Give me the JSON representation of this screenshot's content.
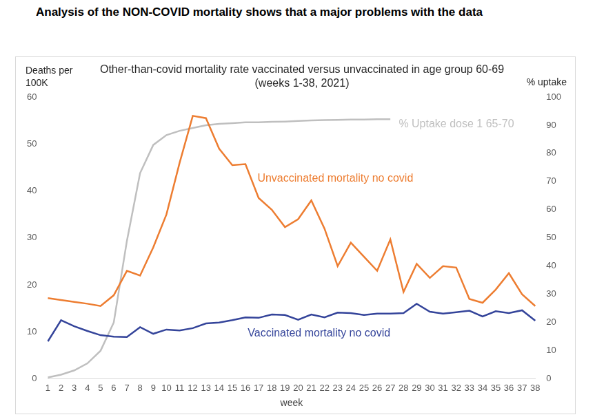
{
  "heading": "Analysis of the NON-COVID mortality shows that a major problems with the data",
  "chart_data": {
    "type": "line",
    "title": "Other-than-covid mortality rate vaccinated versus unvaccinated in age group 60-69  (weeks 1-38, 2021)",
    "x_label": "week",
    "y_label": "Deaths per 100K",
    "y2_label": "% uptake",
    "categories": [
      1,
      2,
      3,
      4,
      5,
      6,
      7,
      8,
      9,
      10,
      11,
      12,
      13,
      14,
      15,
      16,
      17,
      18,
      19,
      20,
      21,
      22,
      23,
      24,
      25,
      26,
      27,
      28,
      29,
      30,
      31,
      32,
      33,
      34,
      35,
      36,
      37,
      38
    ],
    "series": [
      {
        "name": "Unvaccinated mortality no covid",
        "color": "#ed7d31",
        "values": [
          17.2,
          16.8,
          16.4,
          16.0,
          15.5,
          17.8,
          23.0,
          22.0,
          28.0,
          35.0,
          46.0,
          56.0,
          55.5,
          49.0,
          45.5,
          45.7,
          38.5,
          36.0,
          32.3,
          34.0,
          38.0,
          32.0,
          24.0,
          29.0,
          26.0,
          23.0,
          29.7,
          18.5,
          24.5,
          21.5,
          24.0,
          23.7,
          17.0,
          16.2,
          19.0,
          22.5,
          18.0,
          15.5
        ]
      },
      {
        "name": "Vaccinated mortality no covid",
        "color": "#34449a",
        "values": [
          8.0,
          12.5,
          11.2,
          10.2,
          9.3,
          9.0,
          8.9,
          11.0,
          9.6,
          10.5,
          10.3,
          10.8,
          11.8,
          12.0,
          12.5,
          13.1,
          13.0,
          13.7,
          13.6,
          12.6,
          13.7,
          13.1,
          14.1,
          14.0,
          13.6,
          13.9,
          13.9,
          14.0,
          16.0,
          14.3,
          13.9,
          14.2,
          14.5,
          13.3,
          14.4,
          14.0,
          14.6,
          12.4
        ]
      },
      {
        "name": "% Uptake dose 1 65-70",
        "color": "#bfbfbf",
        "axis": "y2",
        "values": [
          0.5,
          1.5,
          3.0,
          5.5,
          10.0,
          20.0,
          49.0,
          73.0,
          83.0,
          86.5,
          88.0,
          89.0,
          90.0,
          90.5,
          90.7,
          91.0,
          91.0,
          91.2,
          91.3,
          91.5,
          91.7,
          91.8,
          91.9,
          92.0,
          92.0,
          92.1,
          92.1,
          null,
          null,
          null,
          null,
          null,
          null,
          null,
          null,
          null,
          null,
          null
        ]
      }
    ],
    "ylim": [
      0,
      60
    ],
    "yticks": [
      0,
      10,
      20,
      30,
      40,
      50,
      60
    ],
    "y2lim": [
      0,
      100
    ],
    "y2ticks": [
      0,
      10,
      20,
      30,
      40,
      50,
      60,
      70,
      80,
      90,
      100
    ],
    "grid": false
  }
}
